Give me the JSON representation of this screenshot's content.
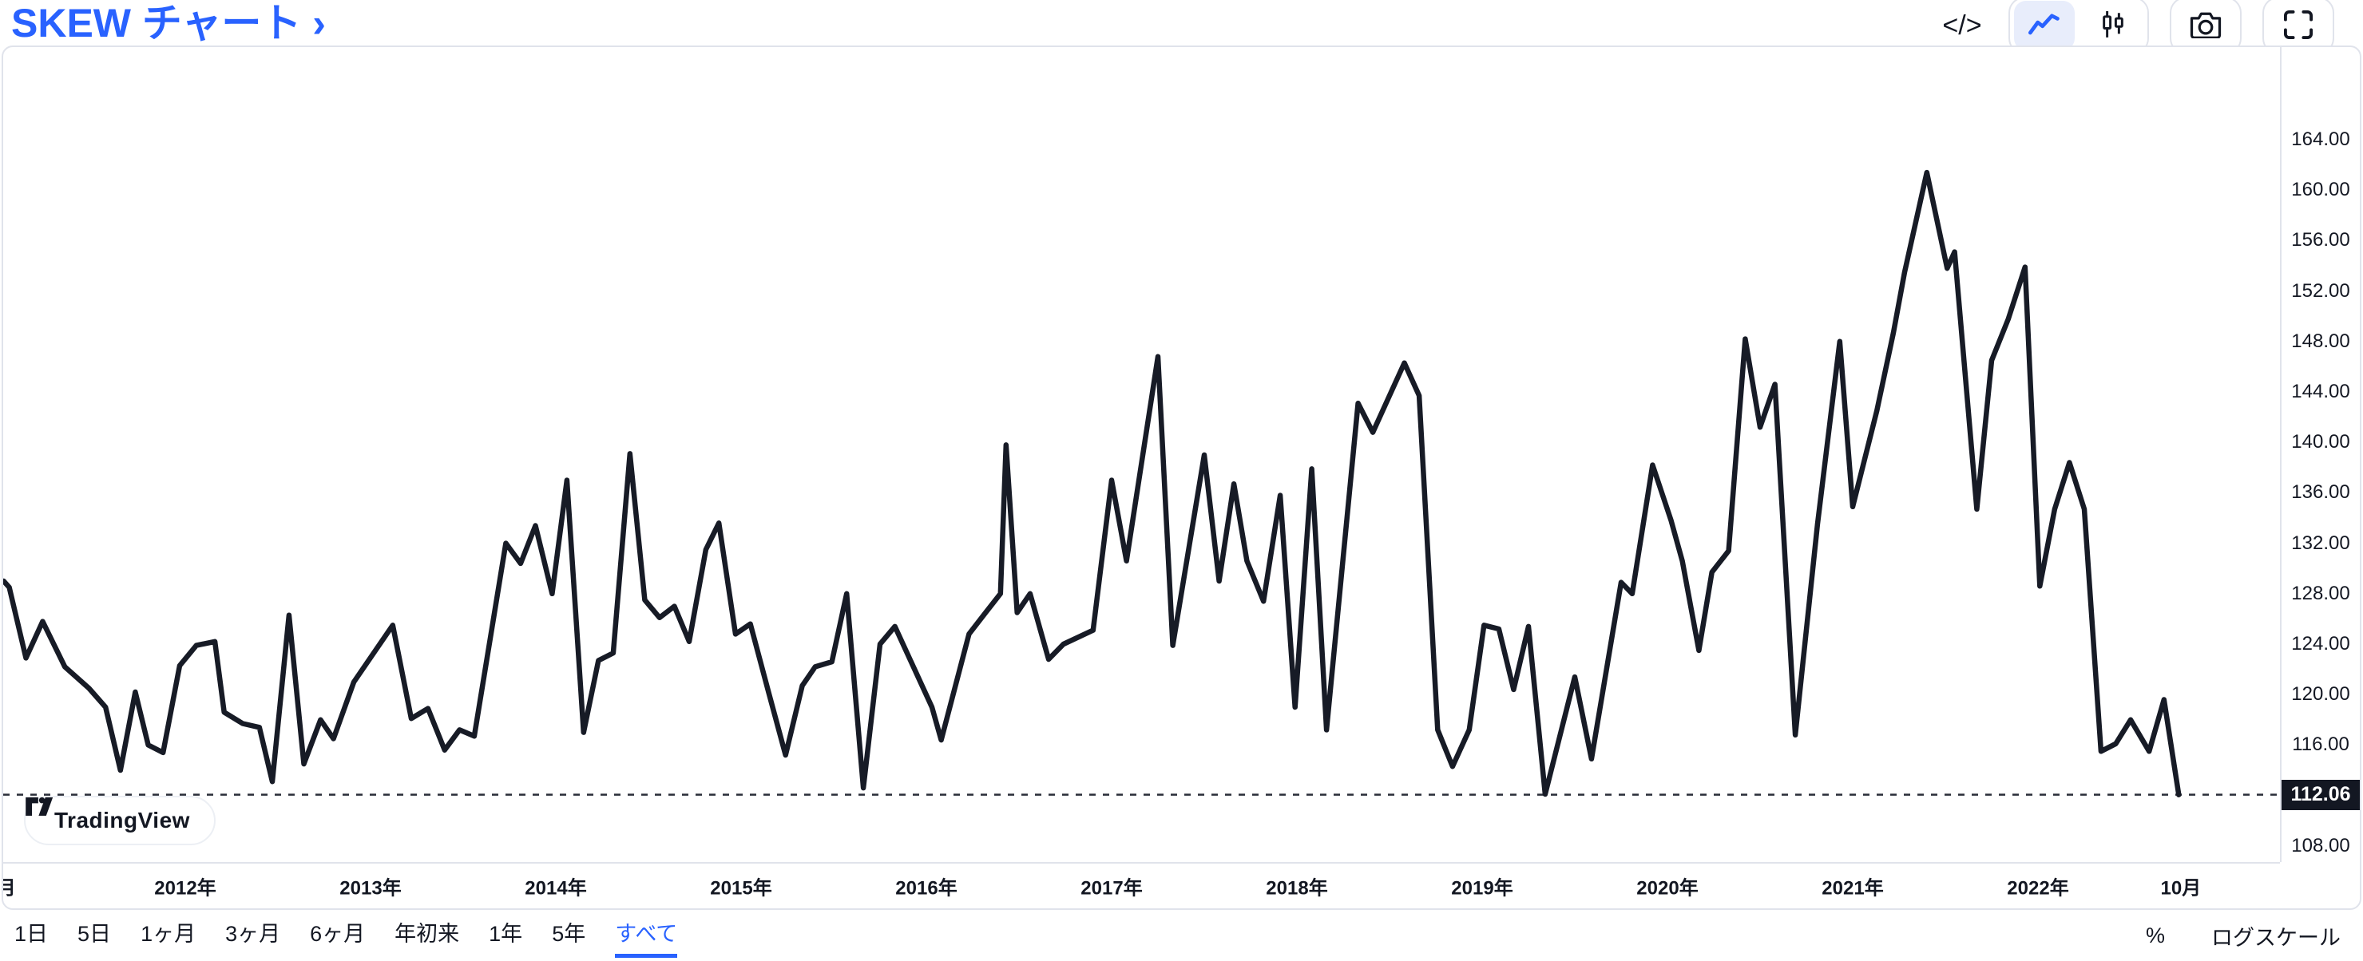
{
  "header": {
    "title": "SKEW チャート ›"
  },
  "icons": {
    "code_glyph": "</>"
  },
  "attribution": {
    "text": "TradingView"
  },
  "toolbar": {
    "percent_label": "%",
    "log_scale_label": "ログスケール"
  },
  "range_toolbar": {
    "selected": "all",
    "items": [
      {
        "id": "1d",
        "label": "1日"
      },
      {
        "id": "5d",
        "label": "5日"
      },
      {
        "id": "1m",
        "label": "1ヶ月"
      },
      {
        "id": "3m",
        "label": "3ヶ月"
      },
      {
        "id": "6m",
        "label": "6ヶ月"
      },
      {
        "id": "ytd",
        "label": "年初来"
      },
      {
        "id": "1y",
        "label": "1年"
      },
      {
        "id": "5y",
        "label": "5年"
      },
      {
        "id": "all",
        "label": "すべて"
      }
    ]
  },
  "chart_data": {
    "type": "line",
    "title": "SKEW チャート",
    "grid": false,
    "legend_position": "none",
    "line_color": "#171b26",
    "last_price": 112.06,
    "last_price_label": "112.06",
    "ylim": [
      106.0,
      171.5
    ],
    "xlim": [
      2011.0,
      2023.3
    ],
    "y_ticks": [
      164,
      160,
      156,
      152,
      148,
      144,
      140,
      136,
      132,
      128,
      124,
      120,
      116,
      108
    ],
    "x_ticks": [
      {
        "label": "月",
        "year": 2011.034
      },
      {
        "label": "2012年",
        "year": 2012
      },
      {
        "label": "2013年",
        "year": 2013
      },
      {
        "label": "2014年",
        "year": 2014
      },
      {
        "label": "2015年",
        "year": 2015
      },
      {
        "label": "2016年",
        "year": 2016
      },
      {
        "label": "2017年",
        "year": 2017
      },
      {
        "label": "2018年",
        "year": 2018
      },
      {
        "label": "2019年",
        "year": 2019
      },
      {
        "label": "2020年",
        "year": 2020
      },
      {
        "label": "2021年",
        "year": 2021
      },
      {
        "label": "2022年",
        "year": 2022
      },
      {
        "label": "10月",
        "year": 2022.771
      }
    ],
    "series": [
      {
        "name": "SKEW",
        "points": [
          [
            2011.02,
            129.0
          ],
          [
            2011.05,
            128.5
          ],
          [
            2011.14,
            122.9
          ],
          [
            2011.23,
            125.8
          ],
          [
            2011.35,
            122.2
          ],
          [
            2011.48,
            120.5
          ],
          [
            2011.57,
            119.0
          ],
          [
            2011.65,
            114.0
          ],
          [
            2011.73,
            120.2
          ],
          [
            2011.8,
            116.0
          ],
          [
            2011.88,
            115.4
          ],
          [
            2011.97,
            122.3
          ],
          [
            2012.06,
            123.9
          ],
          [
            2012.16,
            124.2
          ],
          [
            2012.21,
            118.6
          ],
          [
            2012.31,
            117.7
          ],
          [
            2012.4,
            117.4
          ],
          [
            2012.47,
            113.1
          ],
          [
            2012.56,
            126.3
          ],
          [
            2012.64,
            114.5
          ],
          [
            2012.73,
            118.0
          ],
          [
            2012.8,
            116.5
          ],
          [
            2012.91,
            121.0
          ],
          [
            2013.12,
            125.5
          ],
          [
            2013.22,
            118.1
          ],
          [
            2013.31,
            118.9
          ],
          [
            2013.4,
            115.6
          ],
          [
            2013.48,
            117.2
          ],
          [
            2013.56,
            116.7
          ],
          [
            2013.73,
            132.0
          ],
          [
            2013.81,
            130.4
          ],
          [
            2013.89,
            133.4
          ],
          [
            2013.98,
            128.0
          ],
          [
            2014.06,
            137.0
          ],
          [
            2014.15,
            117.0
          ],
          [
            2014.23,
            122.7
          ],
          [
            2014.31,
            123.3
          ],
          [
            2014.4,
            139.1
          ],
          [
            2014.48,
            127.5
          ],
          [
            2014.56,
            126.1
          ],
          [
            2014.64,
            127.0
          ],
          [
            2014.72,
            124.2
          ],
          [
            2014.81,
            131.5
          ],
          [
            2014.88,
            133.6
          ],
          [
            2014.97,
            124.8
          ],
          [
            2015.05,
            125.6
          ],
          [
            2015.15,
            120.1
          ],
          [
            2015.24,
            115.2
          ],
          [
            2015.33,
            120.7
          ],
          [
            2015.4,
            122.2
          ],
          [
            2015.49,
            122.6
          ],
          [
            2015.57,
            128.0
          ],
          [
            2015.66,
            112.6
          ],
          [
            2015.75,
            124.0
          ],
          [
            2015.83,
            125.4
          ],
          [
            2016.03,
            119.0
          ],
          [
            2016.08,
            116.4
          ],
          [
            2016.23,
            124.8
          ],
          [
            2016.32,
            126.5
          ],
          [
            2016.4,
            128.0
          ],
          [
            2016.43,
            139.8
          ],
          [
            2016.49,
            126.5
          ],
          [
            2016.56,
            128.0
          ],
          [
            2016.66,
            122.8
          ],
          [
            2016.74,
            124.0
          ],
          [
            2016.9,
            125.1
          ],
          [
            2017.0,
            137.0
          ],
          [
            2017.08,
            130.6
          ],
          [
            2017.25,
            146.8
          ],
          [
            2017.33,
            123.9
          ],
          [
            2017.5,
            139.0
          ],
          [
            2017.58,
            129.0
          ],
          [
            2017.66,
            136.7
          ],
          [
            2017.73,
            130.6
          ],
          [
            2017.82,
            127.4
          ],
          [
            2017.91,
            135.8
          ],
          [
            2017.99,
            119.0
          ],
          [
            2018.08,
            137.9
          ],
          [
            2018.16,
            117.2
          ],
          [
            2018.33,
            143.1
          ],
          [
            2018.41,
            140.8
          ],
          [
            2018.58,
            146.3
          ],
          [
            2018.66,
            143.7
          ],
          [
            2018.76,
            117.2
          ],
          [
            2018.84,
            114.3
          ],
          [
            2018.93,
            117.2
          ],
          [
            2019.01,
            125.5
          ],
          [
            2019.09,
            125.2
          ],
          [
            2019.17,
            120.4
          ],
          [
            2019.25,
            125.4
          ],
          [
            2019.34,
            112.1
          ],
          [
            2019.5,
            121.4
          ],
          [
            2019.59,
            114.9
          ],
          [
            2019.75,
            128.9
          ],
          [
            2019.81,
            128.0
          ],
          [
            2019.92,
            138.2
          ],
          [
            2020.02,
            133.8
          ],
          [
            2020.08,
            130.6
          ],
          [
            2020.17,
            123.5
          ],
          [
            2020.24,
            129.7
          ],
          [
            2020.33,
            131.4
          ],
          [
            2020.42,
            148.2
          ],
          [
            2020.5,
            141.2
          ],
          [
            2020.58,
            144.6
          ],
          [
            2020.69,
            116.8
          ],
          [
            2020.81,
            133.5
          ],
          [
            2020.93,
            148.0
          ],
          [
            2021.0,
            134.9
          ],
          [
            2021.13,
            142.5
          ],
          [
            2021.22,
            148.7
          ],
          [
            2021.28,
            153.5
          ],
          [
            2021.4,
            161.4
          ],
          [
            2021.51,
            153.8
          ],
          [
            2021.55,
            155.1
          ],
          [
            2021.67,
            134.7
          ],
          [
            2021.75,
            146.5
          ],
          [
            2021.84,
            149.8
          ],
          [
            2021.93,
            153.9
          ],
          [
            2022.01,
            128.6
          ],
          [
            2022.09,
            134.7
          ],
          [
            2022.17,
            138.4
          ],
          [
            2022.25,
            134.7
          ],
          [
            2022.34,
            115.5
          ],
          [
            2022.42,
            116.1
          ],
          [
            2022.5,
            118.0
          ],
          [
            2022.6,
            115.5
          ],
          [
            2022.68,
            119.6
          ],
          [
            2022.76,
            112.06
          ]
        ]
      }
    ]
  },
  "colors": {
    "accent": "#2962FF",
    "line": "#171b26",
    "border": "#e0e3eb",
    "badge_bg": "#131722",
    "badge_text": "#ffffff",
    "selected_segment_bg": "#e8edfb"
  }
}
